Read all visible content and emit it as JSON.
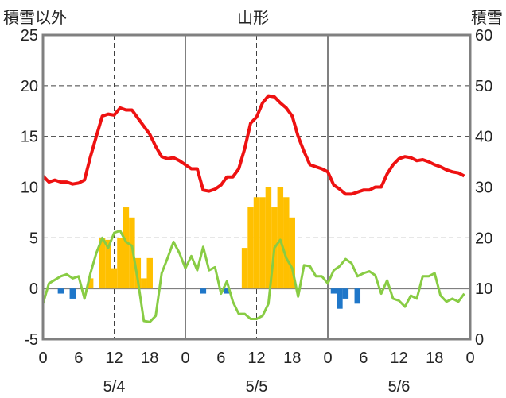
{
  "labels": {
    "left_axis": "積雪以外",
    "title": "山形",
    "right_axis": "積雪"
  },
  "colors": {
    "temperature": "#ee1111",
    "other": "#88cc44",
    "snow_pos": "#ffc000",
    "snow_neg": "#1f77c9",
    "frame": "#808080",
    "grid": "#404040"
  },
  "chart_data": {
    "type": "line",
    "title": "山形",
    "ylabel_left": "積雪以外",
    "ylabel_right": "積雪",
    "ylim_left": [
      -5,
      25
    ],
    "ylim_right": [
      0,
      60
    ],
    "left_ticks": [
      25,
      20,
      15,
      10,
      5,
      0,
      -5
    ],
    "right_ticks": [
      60,
      50,
      40,
      30,
      20,
      10,
      0
    ],
    "x_hours": [
      0,
      72
    ],
    "x_tick_labels": [
      "0",
      "6",
      "12",
      "18",
      "0",
      "6",
      "12",
      "18",
      "0",
      "6",
      "12",
      "18",
      "0"
    ],
    "date_labels": [
      {
        "hour": 12,
        "label": "5/4"
      },
      {
        "hour": 36,
        "label": "5/5"
      },
      {
        "hour": 60,
        "label": "5/6"
      }
    ],
    "solid_vlines": [
      24,
      48
    ],
    "dashed_vlines": [
      12,
      36,
      60
    ],
    "dashed_hlines": [
      5,
      10,
      15,
      20
    ],
    "series": [
      {
        "kind": "line",
        "color_key": "temperature",
        "points": [
          [
            0,
            11.1
          ],
          [
            1,
            10.5
          ],
          [
            2,
            10.7
          ],
          [
            3,
            10.5
          ],
          [
            4,
            10.5
          ],
          [
            5,
            10.3
          ],
          [
            6,
            10.4
          ],
          [
            7,
            10.7
          ],
          [
            8,
            13.0
          ],
          [
            9,
            15.0
          ],
          [
            10,
            17.0
          ],
          [
            11,
            17.2
          ],
          [
            12,
            17.1
          ],
          [
            13,
            17.8
          ],
          [
            14,
            17.6
          ],
          [
            15,
            17.6
          ],
          [
            16,
            16.8
          ],
          [
            17,
            16.0
          ],
          [
            18,
            15.2
          ],
          [
            19,
            14.0
          ],
          [
            20,
            13.0
          ],
          [
            21,
            12.8
          ],
          [
            22,
            12.9
          ],
          [
            23,
            12.6
          ],
          [
            24,
            12.2
          ],
          [
            25,
            11.8
          ],
          [
            26,
            11.8
          ],
          [
            27,
            9.7
          ],
          [
            28,
            9.6
          ],
          [
            29,
            9.8
          ],
          [
            30,
            10.2
          ],
          [
            31,
            11.0
          ],
          [
            32,
            11.0
          ],
          [
            33,
            11.8
          ],
          [
            34,
            13.8
          ],
          [
            35,
            16.3
          ],
          [
            36,
            16.9
          ],
          [
            37,
            18.3
          ],
          [
            38,
            19.0
          ],
          [
            39,
            18.9
          ],
          [
            40,
            18.3
          ],
          [
            41,
            17.8
          ],
          [
            42,
            17.0
          ],
          [
            43,
            15.0
          ],
          [
            44,
            13.5
          ],
          [
            45,
            12.2
          ],
          [
            46,
            12.0
          ],
          [
            47,
            11.8
          ],
          [
            48,
            11.5
          ],
          [
            49,
            10.2
          ],
          [
            50,
            9.8
          ],
          [
            51,
            9.3
          ],
          [
            52,
            9.3
          ],
          [
            53,
            9.5
          ],
          [
            54,
            9.7
          ],
          [
            55,
            9.7
          ],
          [
            56,
            10.0
          ],
          [
            57,
            10.0
          ],
          [
            58,
            11.3
          ],
          [
            59,
            12.2
          ],
          [
            60,
            12.8
          ],
          [
            61,
            13.0
          ],
          [
            62,
            12.9
          ],
          [
            63,
            12.6
          ],
          [
            64,
            12.7
          ],
          [
            65,
            12.5
          ],
          [
            66,
            12.2
          ],
          [
            67,
            12.0
          ],
          [
            68,
            11.7
          ],
          [
            69,
            11.5
          ],
          [
            70,
            11.4
          ],
          [
            71,
            11.1
          ]
        ]
      },
      {
        "kind": "line",
        "color_key": "other",
        "points": [
          [
            0,
            -1.5
          ],
          [
            1,
            0.5
          ],
          [
            3,
            1.2
          ],
          [
            4,
            1.4
          ],
          [
            5,
            1.0
          ],
          [
            6,
            1.2
          ],
          [
            7,
            -1.0
          ],
          [
            8,
            1.5
          ],
          [
            9,
            3.5
          ],
          [
            10,
            5.0
          ],
          [
            11,
            4.0
          ],
          [
            12,
            5.5
          ],
          [
            13,
            5.7
          ],
          [
            14,
            4.6
          ],
          [
            15,
            4.2
          ],
          [
            16,
            0.8
          ],
          [
            17,
            -3.2
          ],
          [
            18,
            -3.3
          ],
          [
            19,
            -2.7
          ],
          [
            20,
            1.5
          ],
          [
            21,
            3.0
          ],
          [
            22,
            4.6
          ],
          [
            23,
            3.5
          ],
          [
            24,
            2.0
          ],
          [
            25,
            3.2
          ],
          [
            26,
            1.8
          ],
          [
            27,
            4.1
          ],
          [
            28,
            1.8
          ],
          [
            29,
            2.1
          ],
          [
            30,
            -0.5
          ],
          [
            31,
            0.7
          ],
          [
            32,
            -1.3
          ],
          [
            33,
            -2.5
          ],
          [
            34,
            -2.5
          ],
          [
            35,
            -3.0
          ],
          [
            36,
            -3.0
          ],
          [
            37,
            -2.7
          ],
          [
            38,
            -1.5
          ],
          [
            39,
            4.0
          ],
          [
            40,
            4.8
          ],
          [
            41,
            3.0
          ],
          [
            42,
            2.0
          ],
          [
            43,
            -0.8
          ],
          [
            44,
            2.3
          ],
          [
            45,
            2.2
          ],
          [
            46,
            1.2
          ],
          [
            47,
            1.2
          ],
          [
            48,
            0.5
          ],
          [
            49,
            1.8
          ],
          [
            50,
            2.2
          ],
          [
            51,
            2.9
          ],
          [
            52,
            2.5
          ],
          [
            53,
            1.2
          ],
          [
            54,
            1.5
          ],
          [
            55,
            1.7
          ],
          [
            56,
            1.3
          ],
          [
            57,
            -0.5
          ],
          [
            58,
            0.8
          ],
          [
            59,
            -1.0
          ],
          [
            60,
            -1.2
          ],
          [
            61,
            -1.8
          ],
          [
            62,
            -0.7
          ],
          [
            63,
            -1.0
          ],
          [
            64,
            1.2
          ],
          [
            65,
            1.2
          ],
          [
            66,
            1.5
          ],
          [
            67,
            -0.7
          ],
          [
            68,
            -1.3
          ],
          [
            69,
            -1.0
          ],
          [
            70,
            -1.3
          ],
          [
            71,
            -0.5
          ]
        ]
      }
    ],
    "bars": [
      {
        "hour": 3,
        "value": -0.5
      },
      {
        "hour": 5,
        "value": -1.0
      },
      {
        "hour": 8,
        "value": 1.0
      },
      {
        "hour": 10,
        "value": 5.0
      },
      {
        "hour": 11,
        "value": 4.8
      },
      {
        "hour": 12,
        "value": 2.0
      },
      {
        "hour": 13,
        "value": 5.0
      },
      {
        "hour": 14,
        "value": 8.0
      },
      {
        "hour": 15,
        "value": 7.0
      },
      {
        "hour": 16,
        "value": 3.0
      },
      {
        "hour": 17,
        "value": 1.0
      },
      {
        "hour": 18,
        "value": 3.0
      },
      {
        "hour": 27,
        "value": -0.5
      },
      {
        "hour": 31,
        "value": -0.5
      },
      {
        "hour": 34,
        "value": 4.0
      },
      {
        "hour": 35,
        "value": 8.0
      },
      {
        "hour": 36,
        "value": 9.0
      },
      {
        "hour": 37,
        "value": 9.0
      },
      {
        "hour": 38,
        "value": 10.0
      },
      {
        "hour": 39,
        "value": 8.0
      },
      {
        "hour": 40,
        "value": 10.0
      },
      {
        "hour": 41,
        "value": 9.0
      },
      {
        "hour": 42,
        "value": 7.0
      },
      {
        "hour": 49,
        "value": -0.5
      },
      {
        "hour": 50,
        "value": -2.0
      },
      {
        "hour": 51,
        "value": -1.0
      },
      {
        "hour": 53,
        "value": -1.5
      }
    ]
  }
}
